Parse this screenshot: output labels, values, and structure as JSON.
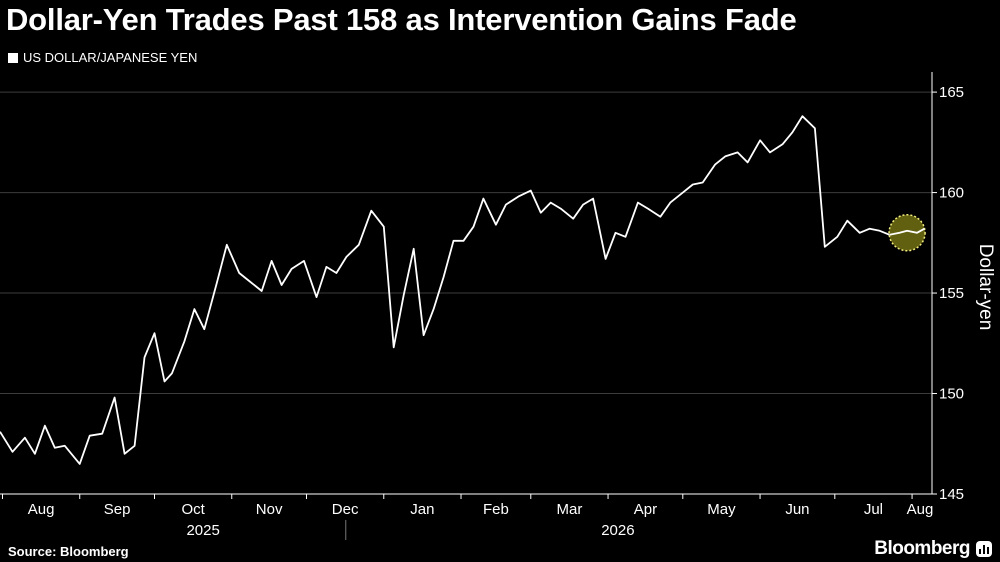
{
  "title": "Dollar-Yen Trades Past 158 as Intervention Gains Fade",
  "source": "Source: Bloomberg",
  "brand": "Bloomberg",
  "brand_icon": "bloomberg-chart-icon",
  "colors": {
    "background": "#000000",
    "line": "#ffffff",
    "grid": "#3c3c3c",
    "highlight_fill": "#6b6a12",
    "highlight_stroke": "#f2ec7d"
  },
  "chart_data": {
    "type": "line",
    "ylabel": "Dollar-yen",
    "ylim": [
      145,
      166
    ],
    "y_ticks": [
      "145",
      "150",
      "155",
      "160",
      "165"
    ],
    "y_tick_values": [
      145,
      150,
      155,
      160,
      165
    ],
    "grid": true,
    "legend": "top-left",
    "x_months": [
      "Aug",
      "Sep",
      "Oct",
      "Nov",
      "Dec",
      "Jan",
      "Feb",
      "Mar",
      "Apr",
      "May",
      "Jun",
      "Jul",
      "Aug"
    ],
    "x_years": [
      "2025",
      "2026"
    ],
    "series": [
      {
        "name": "US DOLLAR/JAPANESE YEN",
        "x": [
          "2025-07-31",
          "2025-08-05",
          "2025-08-10",
          "2025-08-14",
          "2025-08-18",
          "2025-08-22",
          "2025-08-26",
          "2025-09-01",
          "2025-09-05",
          "2025-09-10",
          "2025-09-15",
          "2025-09-19",
          "2025-09-23",
          "2025-09-27",
          "2025-10-01",
          "2025-10-05",
          "2025-10-08",
          "2025-10-13",
          "2025-10-17",
          "2025-10-21",
          "2025-10-26",
          "2025-10-30",
          "2025-11-04",
          "2025-11-08",
          "2025-11-13",
          "2025-11-17",
          "2025-11-21",
          "2025-11-25",
          "2025-11-30",
          "2025-12-05",
          "2025-12-09",
          "2025-12-13",
          "2025-12-17",
          "2025-12-22",
          "2025-12-27",
          "2026-01-01",
          "2026-01-05",
          "2026-01-09",
          "2026-01-13",
          "2026-01-17",
          "2026-01-21",
          "2026-01-25",
          "2026-01-29",
          "2026-02-02",
          "2026-02-06",
          "2026-02-10",
          "2026-02-15",
          "2026-02-19",
          "2026-02-24",
          "2026-03-01",
          "2026-03-05",
          "2026-03-09",
          "2026-03-13",
          "2026-03-18",
          "2026-03-22",
          "2026-03-26",
          "2026-03-31",
          "2026-04-04",
          "2026-04-08",
          "2026-04-13",
          "2026-04-17",
          "2026-04-22",
          "2026-04-26",
          "2026-05-01",
          "2026-05-05",
          "2026-05-09",
          "2026-05-14",
          "2026-05-18",
          "2026-05-23",
          "2026-05-27",
          "2026-06-01",
          "2026-06-05",
          "2026-06-10",
          "2026-06-14",
          "2026-06-18",
          "2026-06-23",
          "2026-06-27",
          "2026-07-02",
          "2026-07-06",
          "2026-07-11",
          "2026-07-15",
          "2026-07-19",
          "2026-07-23",
          "2026-07-27",
          "2026-07-30",
          "2026-08-03",
          "2026-08-06"
        ],
        "values": [
          148.1,
          147.1,
          147.8,
          147.0,
          148.4,
          147.3,
          147.4,
          146.5,
          147.9,
          148.0,
          149.8,
          147.0,
          147.4,
          151.8,
          153.0,
          150.6,
          151.0,
          152.6,
          154.2,
          153.2,
          155.5,
          157.4,
          156.0,
          155.6,
          155.1,
          156.6,
          155.4,
          156.2,
          156.6,
          154.8,
          156.3,
          156.0,
          156.8,
          157.4,
          159.1,
          158.3,
          152.3,
          154.9,
          157.2,
          152.9,
          154.2,
          155.8,
          157.6,
          157.6,
          158.3,
          159.7,
          158.4,
          159.4,
          159.8,
          160.1,
          159.0,
          159.5,
          159.2,
          158.7,
          159.4,
          159.7,
          156.7,
          158.0,
          157.8,
          159.5,
          159.2,
          158.8,
          159.5,
          160.0,
          160.4,
          160.5,
          161.4,
          161.8,
          162.0,
          161.5,
          162.6,
          162.0,
          162.4,
          163.0,
          163.8,
          163.2,
          157.3,
          157.8,
          158.6,
          158.0,
          158.2,
          158.1,
          157.9,
          158.0,
          158.1,
          158.0,
          158.2
        ],
        "color": "#ffffff"
      }
    ]
  }
}
